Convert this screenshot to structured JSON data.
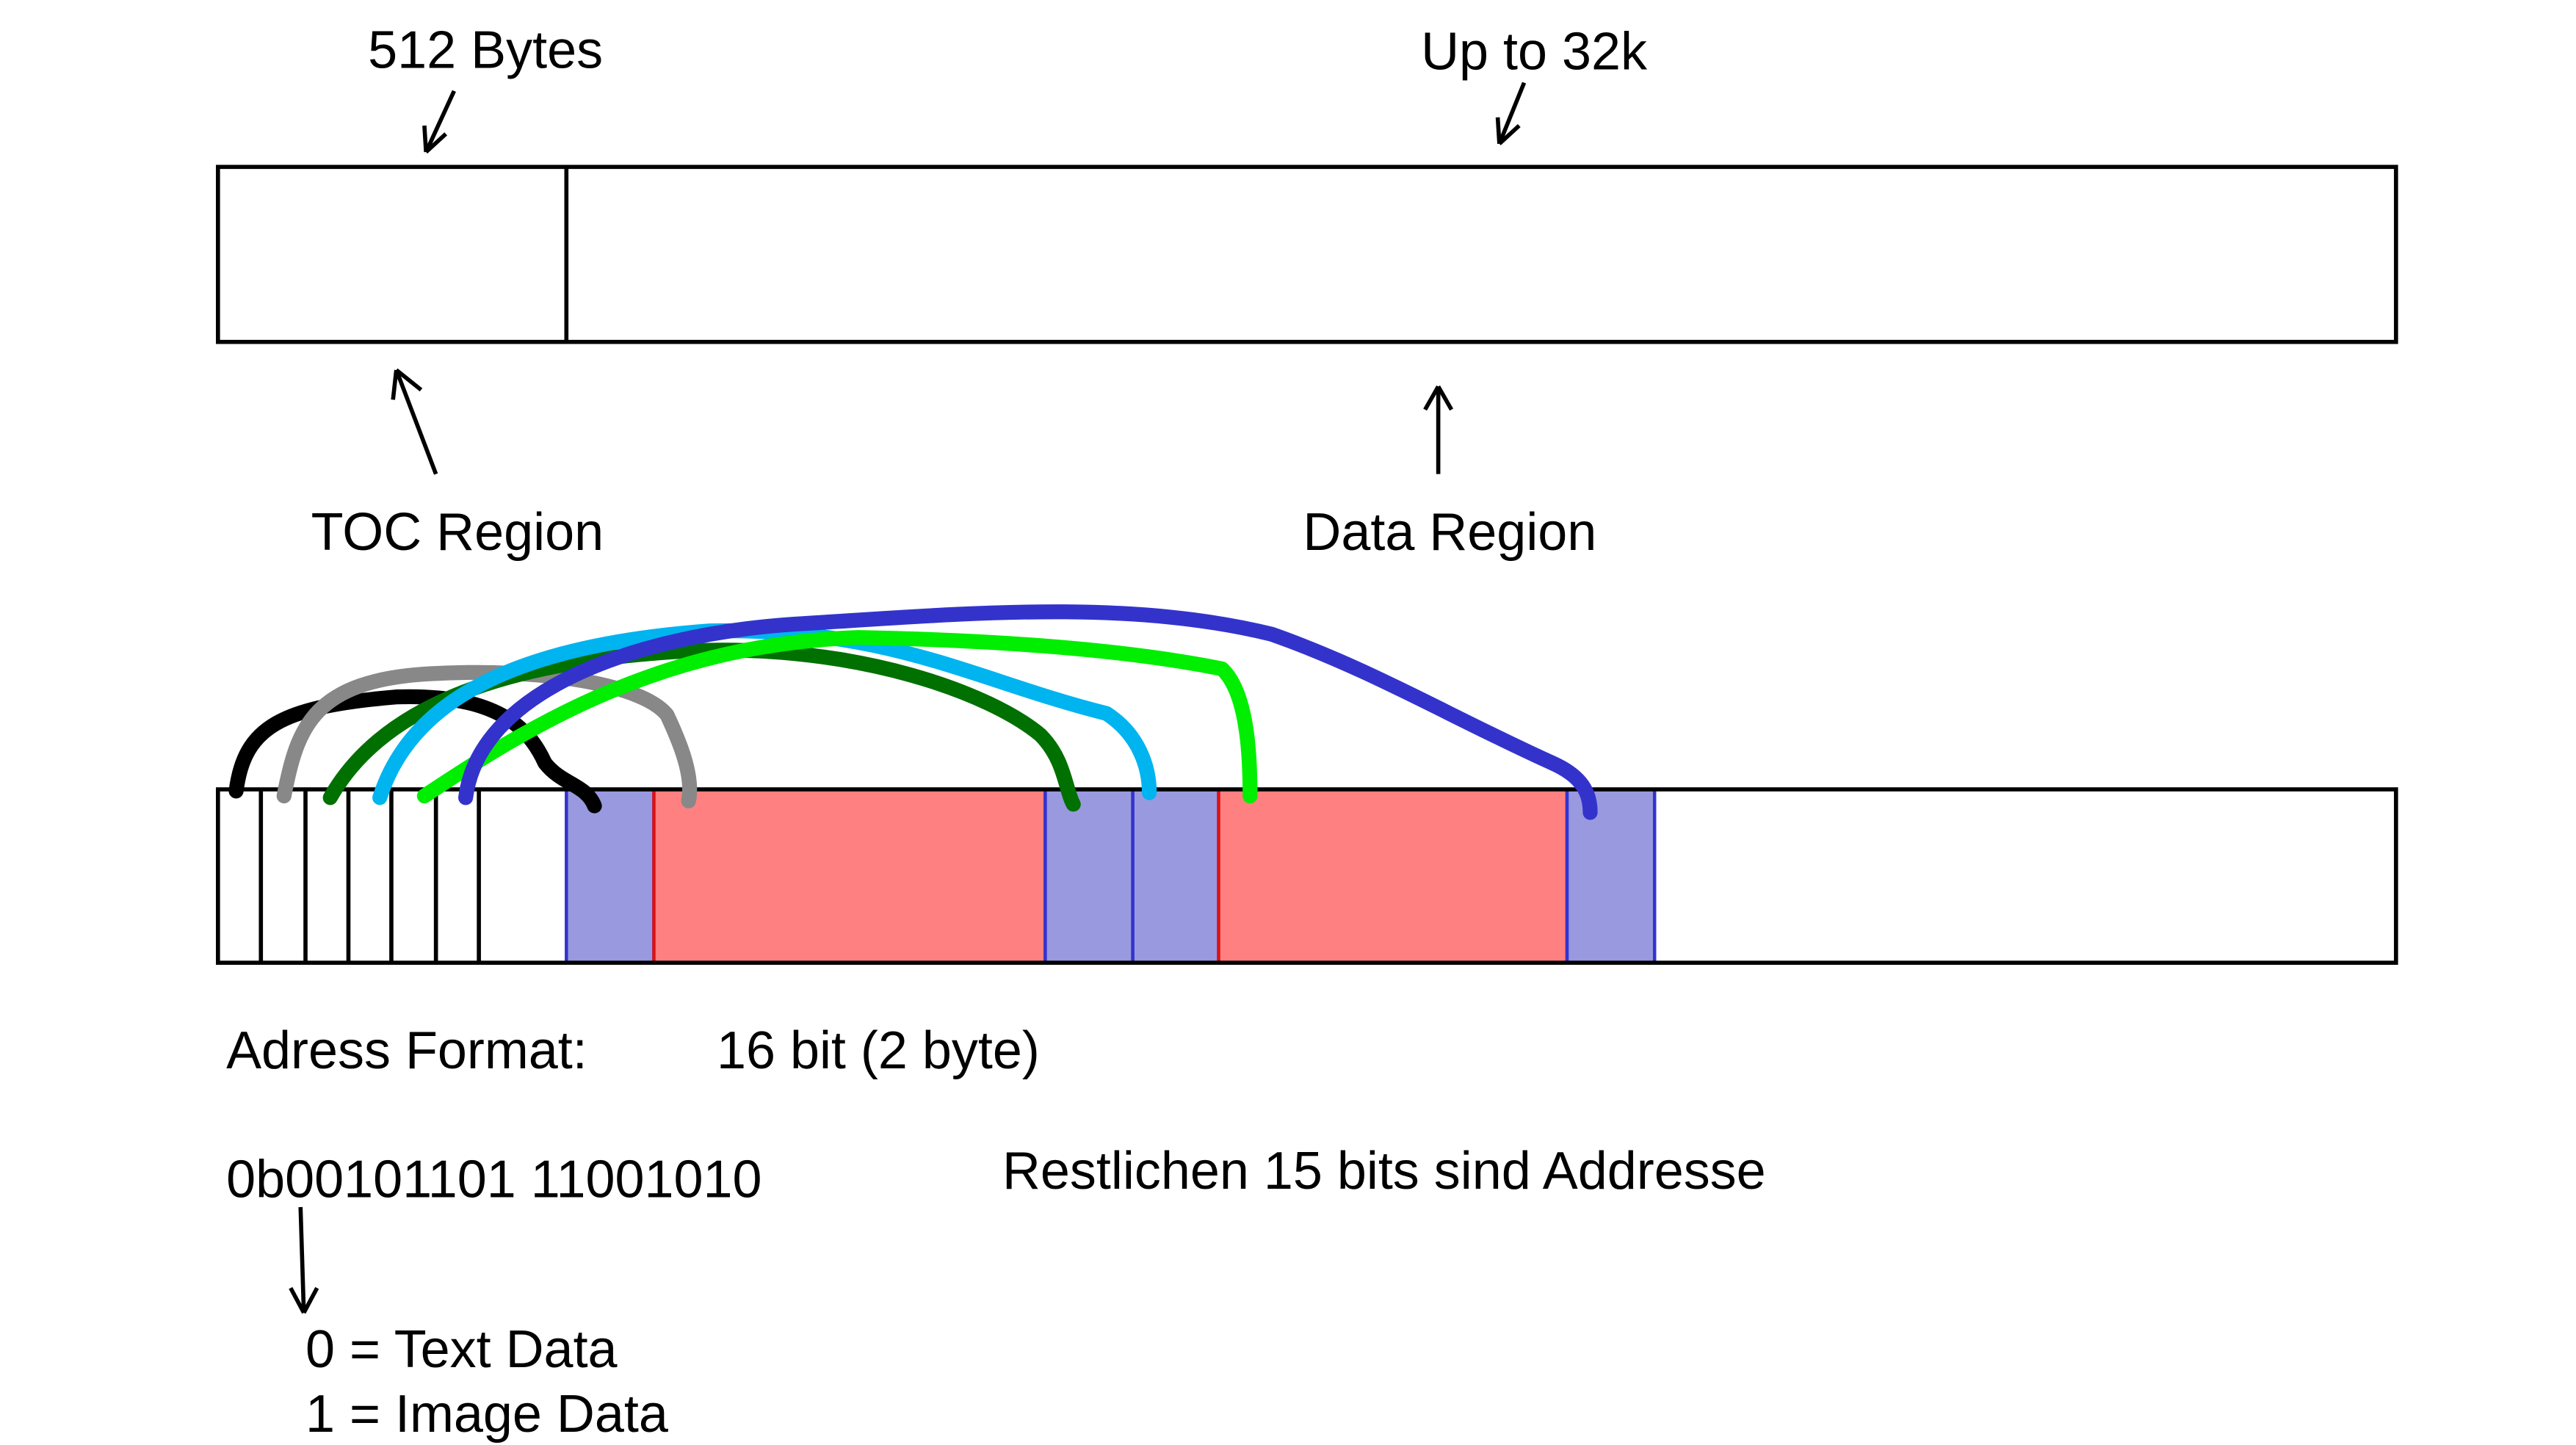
{
  "top_labels": {
    "toc_size": "512 Bytes",
    "data_size": "Up to 32k"
  },
  "regions": {
    "toc": "TOC Region",
    "data": "Data Region"
  },
  "address": {
    "label": "Adress Format:",
    "format": "16 bit (2 byte)",
    "example": "0b00101101 11001010",
    "rest": "Restlichen 15 bits sind Addresse"
  },
  "legend": {
    "text": "0 = Text Data",
    "image": "1 = Image Data"
  }
}
